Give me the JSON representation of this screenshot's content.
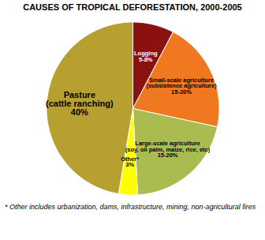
{
  "chart_data": {
    "type": "pie",
    "title": "CAUSES OF TROPICAL DEFORESTATION, 2000-2005",
    "annotations": [
      "* Other includes urbanization, dams, infrastructure, mining, non-agricultural fires"
    ],
    "categories": [
      "Logging\n5-8%",
      "Small-scale agriculture\n(subsistence agriculture)\n15-20%",
      "Large-scale agriculture\n(soy, oil palm, maize, rice, etc)\n15-20%",
      "Other*\n3%",
      "Pasture\n(cattle ranching)\n40%"
    ],
    "values": [
      6.5,
      17.5,
      17.5,
      3.0,
      40.0
    ],
    "colors": [
      "#8B1010",
      "#F07820",
      "#AABC50",
      "#FFFF00",
      "#B8A030"
    ]
  }
}
